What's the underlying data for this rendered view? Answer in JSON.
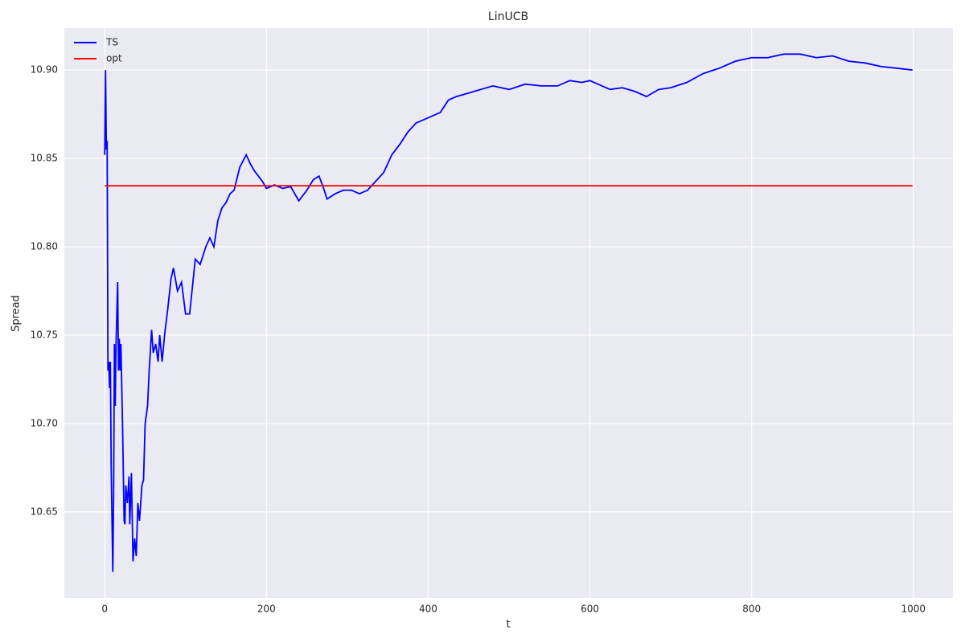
{
  "chart_data": {
    "type": "line",
    "title": "LinUCB",
    "x_label": "t",
    "y_label": "Spread",
    "xlim": [
      -49.95,
      1048.95
    ],
    "ylim": [
      10.6013,
      10.9237
    ],
    "xticks": [
      0,
      200,
      400,
      600,
      800,
      1000
    ],
    "yticks": [
      10.65,
      {
        "value": 10.7,
        "label": "10.70"
      },
      10.75,
      {
        "value": 10.8,
        "label": "10.80"
      },
      10.85,
      {
        "value": 10.9,
        "label": "10.90"
      }
    ],
    "grid": true,
    "legend": "upper left",
    "series": [
      {
        "name": "TS",
        "color": "#0000ff",
        "x": [
          0,
          1,
          2,
          3,
          4,
          5,
          6,
          7,
          8,
          10,
          11,
          12,
          13,
          14,
          16,
          17,
          18,
          19,
          20,
          22,
          24,
          25,
          26,
          28,
          30,
          31,
          33,
          35,
          37,
          39,
          41,
          43,
          46,
          48,
          50,
          53,
          55,
          58,
          60,
          63,
          66,
          68,
          71,
          74,
          78,
          82,
          85,
          90,
          95,
          100,
          105,
          112,
          118,
          125,
          130,
          135,
          140,
          145,
          150,
          155,
          160,
          167,
          175,
          180,
          185,
          190,
          195,
          200,
          210,
          220,
          230,
          240,
          250,
          258,
          265,
          270,
          275,
          285,
          295,
          305,
          315,
          325,
          335,
          345,
          355,
          365,
          375,
          385,
          395,
          405,
          415,
          425,
          435,
          450,
          465,
          480,
          500,
          520,
          540,
          560,
          575,
          590,
          600,
          610,
          625,
          640,
          655,
          670,
          685,
          700,
          720,
          740,
          760,
          780,
          800,
          820,
          840,
          860,
          880,
          900,
          920,
          940,
          960,
          980,
          999
        ],
        "values": [
          10.852,
          10.9,
          10.855,
          10.86,
          10.73,
          10.735,
          10.72,
          10.735,
          10.675,
          10.616,
          10.66,
          10.745,
          10.71,
          10.745,
          10.78,
          10.73,
          10.748,
          10.73,
          10.745,
          10.7,
          10.645,
          10.643,
          10.665,
          10.655,
          10.67,
          10.643,
          10.672,
          10.622,
          10.635,
          10.625,
          10.655,
          10.645,
          10.665,
          10.668,
          10.7,
          10.71,
          10.73,
          10.753,
          10.74,
          10.745,
          10.735,
          10.75,
          10.735,
          10.75,
          10.765,
          10.782,
          10.788,
          10.775,
          10.78,
          10.762,
          10.762,
          10.793,
          10.79,
          10.8,
          10.805,
          10.8,
          10.815,
          10.822,
          10.825,
          10.83,
          10.832,
          10.845,
          10.852,
          10.847,
          10.843,
          10.84,
          10.837,
          10.833,
          10.835,
          10.833,
          10.834,
          10.826,
          10.832,
          10.838,
          10.84,
          10.834,
          10.827,
          10.83,
          10.832,
          10.832,
          10.83,
          10.832,
          10.837,
          10.842,
          10.852,
          10.858,
          10.865,
          10.87,
          10.872,
          10.874,
          10.876,
          10.883,
          10.885,
          10.887,
          10.889,
          10.891,
          10.889,
          10.892,
          10.891,
          10.891,
          10.894,
          10.893,
          10.894,
          10.892,
          10.889,
          10.89,
          10.888,
          10.885,
          10.889,
          10.89,
          10.893,
          10.898,
          10.901,
          10.905,
          10.907,
          10.907,
          10.909,
          10.909,
          10.907,
          10.908,
          10.905,
          10.904,
          10.902,
          10.901,
          10.9
        ]
      },
      {
        "name": "opt",
        "color": "#ff0000",
        "x": [
          0,
          999
        ],
        "values": [
          10.8345,
          10.8345
        ]
      }
    ]
  }
}
